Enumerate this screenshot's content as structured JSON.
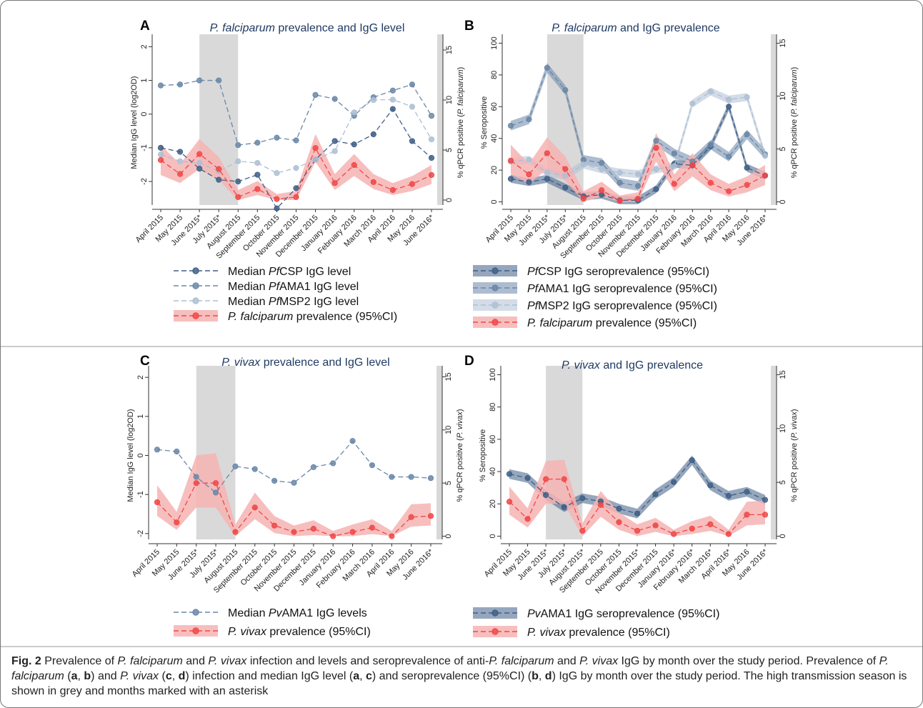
{
  "months": [
    "April 2015",
    "May 2015",
    "June 2015*",
    "July 2015*",
    "August 2015",
    "September 2015",
    "October 2015",
    "November 2015",
    "December 2015",
    "January 2016",
    "February 2016",
    "March 2016",
    "April 2016",
    "May 2016",
    "June 2016*"
  ],
  "months_c": [
    "April 2015",
    "May 2015",
    "June 2015*",
    "July 2015*",
    "August 2015",
    "September 2015",
    "October 2015",
    "November 2015",
    "December 2015",
    "January 2016",
    "February 2016",
    "March 2016",
    "April 2016",
    "May 2016",
    "June 2016*"
  ],
  "months_d": [
    "April 2015",
    "May 2015",
    "June 2015*",
    "July 2015*",
    "August 2015*",
    "September 2015",
    "October 2015",
    "November 2015*",
    "December 2015",
    "January 2016*",
    "February 2016*",
    "March 2016*",
    "April 2016*",
    "May 2016",
    "June 2016*"
  ],
  "colors": {
    "dark": "#3f5f86",
    "mid": "#6a87a8",
    "light": "#aebfd3",
    "red": "#f04848",
    "redband": "#f6b3b3",
    "grey": "#d9d9d9"
  },
  "chart_data": [
    {
      "panel": "A",
      "type": "line",
      "title_italic": "P. falciparum",
      "title_rest": " prevalence and IgG level",
      "ylabel": "Median IgG level (log2OD)",
      "ylim": [
        -2.7,
        2.2
      ],
      "yticks": [
        2,
        1,
        0,
        -1,
        -2
      ],
      "y2label_pre": "% qPCR positive (",
      "y2label_it": "P. falciparum",
      "y2label_post": ")",
      "y2lim": [
        -0.5,
        16
      ],
      "y2ticks": [
        0,
        5,
        10,
        15
      ],
      "shade": [
        2,
        4
      ],
      "series": [
        {
          "style": "dark",
          "axis": "left",
          "values": [
            -1.0,
            -1.12,
            -1.62,
            -1.95,
            -2.0,
            -1.8,
            -2.8,
            -2.2,
            -1.35,
            -0.8,
            -0.9,
            -0.6,
            0.15,
            -0.8,
            -1.3
          ]
        },
        {
          "style": "mid",
          "axis": "left",
          "values": [
            0.85,
            0.88,
            1.0,
            1.0,
            -0.92,
            -0.85,
            -0.7,
            -0.78,
            0.57,
            0.45,
            -0.05,
            0.5,
            0.7,
            0.88,
            -0.05
          ]
        },
        {
          "style": "light",
          "axis": "left",
          "values": [
            -1.2,
            -1.4,
            -1.45,
            -1.7,
            -1.4,
            -1.45,
            -1.75,
            -1.6,
            -1.35,
            -1.1,
            0.05,
            0.42,
            0.43,
            0.22,
            -0.75
          ]
        },
        {
          "style": "red",
          "axis": "right",
          "values": [
            4.0,
            2.6,
            4.6,
            3.1,
            0.3,
            1.1,
            0.1,
            0.3,
            5.2,
            1.7,
            3.5,
            1.8,
            1.0,
            1.6,
            2.5
          ],
          "lower": [
            2.5,
            1.7,
            3.1,
            2.0,
            0.0,
            0.5,
            0.0,
            0.0,
            3.8,
            1.0,
            2.4,
            1.1,
            0.5,
            0.9,
            1.6
          ],
          "upper": [
            5.5,
            3.6,
            6.1,
            4.3,
            1.0,
            1.9,
            0.6,
            0.9,
            6.6,
            2.6,
            4.6,
            2.6,
            1.7,
            2.4,
            3.5
          ]
        }
      ],
      "legend": [
        {
          "style": "dark",
          "pre": "Median ",
          "it": "Pf",
          "post": "CSP IgG level"
        },
        {
          "style": "mid",
          "pre": "Median ",
          "it": "Pf",
          "post": "AMA1 IgG level"
        },
        {
          "style": "light",
          "pre": "Median ",
          "it": "Pf",
          "post": "MSP2 IgG level"
        },
        {
          "style": "red",
          "pre": "",
          "it": "P. falciparum",
          "post": " prevalence (95%CI)"
        }
      ]
    },
    {
      "panel": "B",
      "type": "line",
      "title_italic": "P. falciparum",
      "title_rest": " and IgG prevalence",
      "ylabel": "% Seropositive",
      "ylim": [
        -2,
        102
      ],
      "yticks": [
        0,
        20,
        40,
        60,
        80,
        100
      ],
      "y2label_pre": "% qPCR positive (",
      "y2label_it": "P. falciparum",
      "y2label_post": ")",
      "y2lim": [
        -0.3,
        15.3
      ],
      "y2ticks": [
        0,
        5,
        10,
        15
      ],
      "shade": [
        2,
        4
      ],
      "series": [
        {
          "style": "dark",
          "axis": "left",
          "band": 2.5,
          "values": [
            14.5,
            12.5,
            14.5,
            9.0,
            3.5,
            4.5,
            1.0,
            1.0,
            8.0,
            24.0,
            23.0,
            35.0,
            60.0,
            21.5,
            16.5
          ]
        },
        {
          "style": "mid",
          "axis": "left",
          "band": 3.0,
          "values": [
            48.0,
            52.0,
            84.5,
            70.5,
            26.5,
            24.5,
            12.0,
            10.0,
            38.5,
            30.5,
            25.5,
            36.0,
            28.5,
            42.5,
            30.0
          ]
        },
        {
          "style": "light",
          "axis": "left",
          "band": 2.5,
          "values": [
            25.5,
            26.5,
            18.5,
            16.5,
            23.5,
            20.5,
            18.5,
            17.5,
            20.5,
            22.5,
            62.0,
            69.5,
            64.5,
            66.0,
            29.0
          ]
        },
        {
          "style": "red",
          "axis": "right",
          "values": [
            3.9,
            2.6,
            4.6,
            3.1,
            0.3,
            1.1,
            0.1,
            0.3,
            5.1,
            1.7,
            3.5,
            1.8,
            1.0,
            1.6,
            2.5
          ],
          "lower": [
            2.6,
            1.7,
            3.1,
            2.0,
            0.0,
            0.5,
            0.0,
            0.0,
            3.8,
            1.0,
            2.4,
            1.1,
            0.5,
            0.9,
            1.6
          ],
          "upper": [
            5.4,
            3.6,
            6.1,
            4.3,
            1.0,
            1.9,
            0.6,
            0.9,
            6.5,
            2.6,
            4.6,
            2.6,
            1.7,
            2.4,
            3.5
          ]
        }
      ],
      "legend": [
        {
          "style": "dark",
          "pre": "",
          "it": "Pf",
          "post": "CSP IgG seroprevalence (95%CI)"
        },
        {
          "style": "mid",
          "pre": "",
          "it": "Pf",
          "post": "AMA1 IgG seroprevalence (95%CI)"
        },
        {
          "style": "light",
          "pre": "",
          "it": "Pf",
          "post": "MSP2 IgG seroprevalence (95%CI)"
        },
        {
          "style": "red",
          "pre": "",
          "it": "P. falciparum",
          "post": " prevalence (95%CI)"
        }
      ]
    },
    {
      "panel": "C",
      "type": "line",
      "title_italic": "P. vivax",
      "title_rest": " prevalence and IgG level",
      "ylabel": "Median IgG level (log2OD)",
      "ylim": [
        -2.15,
        2.15
      ],
      "yticks": [
        2,
        1,
        0,
        -1,
        -2
      ],
      "y2label_pre": "% qPCR positive (",
      "y2label_it": "P. vivax",
      "y2label_post": ")",
      "y2lim": [
        -0.3,
        15.5
      ],
      "y2ticks": [
        0,
        5,
        10,
        15
      ],
      "shade": [
        2,
        4
      ],
      "series": [
        {
          "style": "mid",
          "axis": "left",
          "values": [
            0.15,
            0.1,
            -0.55,
            -0.95,
            -0.28,
            -0.35,
            -0.65,
            -0.7,
            -0.3,
            -0.2,
            0.37,
            -0.25,
            -0.55,
            -0.55,
            -0.58
          ]
        },
        {
          "style": "red",
          "axis": "right",
          "values": [
            3.2,
            1.3,
            5.0,
            5.0,
            0.4,
            2.7,
            1.0,
            0.4,
            0.7,
            0.0,
            0.4,
            0.8,
            0.0,
            1.8,
            1.9
          ],
          "lower": [
            1.9,
            0.6,
            2.7,
            2.7,
            0.0,
            1.6,
            0.3,
            0.0,
            0.1,
            0.0,
            0.0,
            0.2,
            0.0,
            0.9,
            1.0
          ],
          "upper": [
            4.8,
            2.3,
            7.6,
            7.8,
            1.1,
            4.1,
            1.9,
            1.0,
            1.5,
            0.5,
            1.1,
            1.6,
            0.5,
            3.0,
            3.1
          ]
        }
      ],
      "legend": [
        {
          "style": "mid",
          "pre": "Median ",
          "it": "Pv",
          "post": "AMA1 IgG levels"
        },
        {
          "style": "red",
          "pre": "",
          "it": "P. vivax",
          "post": " prevalence (95%CI)"
        }
      ]
    },
    {
      "panel": "D",
      "type": "line",
      "title_italic": "P. vivax",
      "title_rest": " and IgG prevalence",
      "ylabel": "% Seropositive",
      "ylim": [
        -2,
        102
      ],
      "yticks": [
        0,
        20,
        40,
        60,
        80,
        100
      ],
      "y2label_pre": "% qPCR positive (",
      "y2label_it": "P. vivax",
      "y2label_post": ")",
      "y2lim": [
        -0.3,
        15.3
      ],
      "y2ticks": [
        0,
        5,
        10,
        15
      ],
      "shade": [
        2,
        4
      ],
      "series": [
        {
          "style": "dark",
          "axis": "left",
          "band": 3.0,
          "values": [
            38.5,
            36.0,
            25.5,
            18.0,
            23.5,
            21.5,
            17.0,
            14.0,
            26.0,
            33.5,
            47.0,
            31.5,
            25.0,
            27.5,
            22.5
          ]
        },
        {
          "style": "red",
          "axis": "right",
          "values": [
            3.2,
            1.6,
            5.3,
            5.3,
            0.5,
            2.9,
            1.3,
            0.5,
            1.0,
            0.2,
            0.7,
            1.1,
            0.2,
            2.0,
            2.0
          ],
          "lower": [
            2.0,
            0.8,
            3.0,
            3.0,
            0.0,
            1.8,
            0.6,
            0.0,
            0.4,
            0.0,
            0.2,
            0.5,
            0.0,
            1.0,
            1.1
          ],
          "upper": [
            4.6,
            2.6,
            7.0,
            7.1,
            1.2,
            4.2,
            2.2,
            1.1,
            1.7,
            0.6,
            1.4,
            1.9,
            0.6,
            3.2,
            3.3
          ]
        }
      ],
      "legend": [
        {
          "style": "dark",
          "pre": "",
          "it": "Pv",
          "post": "AMA1 IgG seroprevalence (95%CI)"
        },
        {
          "style": "red",
          "pre": "",
          "it": "P. vivax",
          "post": " prevalence (95%CI)"
        }
      ]
    }
  ],
  "caption": {
    "fig": "Fig. 2",
    "s1": " Prevalence of ",
    "i1": "P. falciparum",
    "s2": " and ",
    "i2": "P. vivax",
    "s3": " infection and levels and seroprevalence of anti-",
    "i3": "P. falciparum",
    "s4": " and ",
    "i4": "P. vivax",
    "s5": " IgG by month over the study period. Prevalence of ",
    "i5": "P. falciparum",
    "s6": " (",
    "b1": "a",
    "s7": ", ",
    "b2": "b",
    "s8": ") and ",
    "i6": "P. vivax",
    "s9": " (",
    "b3": "c",
    "s10": ", ",
    "b4": "d",
    "s11": ") infection and median IgG level (",
    "b5": "a",
    "s12": ", ",
    "b6": "c",
    "s13": ") and seroprevalence (95%CI) (",
    "b7": "b",
    "s14": ", ",
    "b8": "d",
    "s15": ") IgG by month over the study period. The high transmission season is shown in grey and months marked with an asterisk"
  }
}
